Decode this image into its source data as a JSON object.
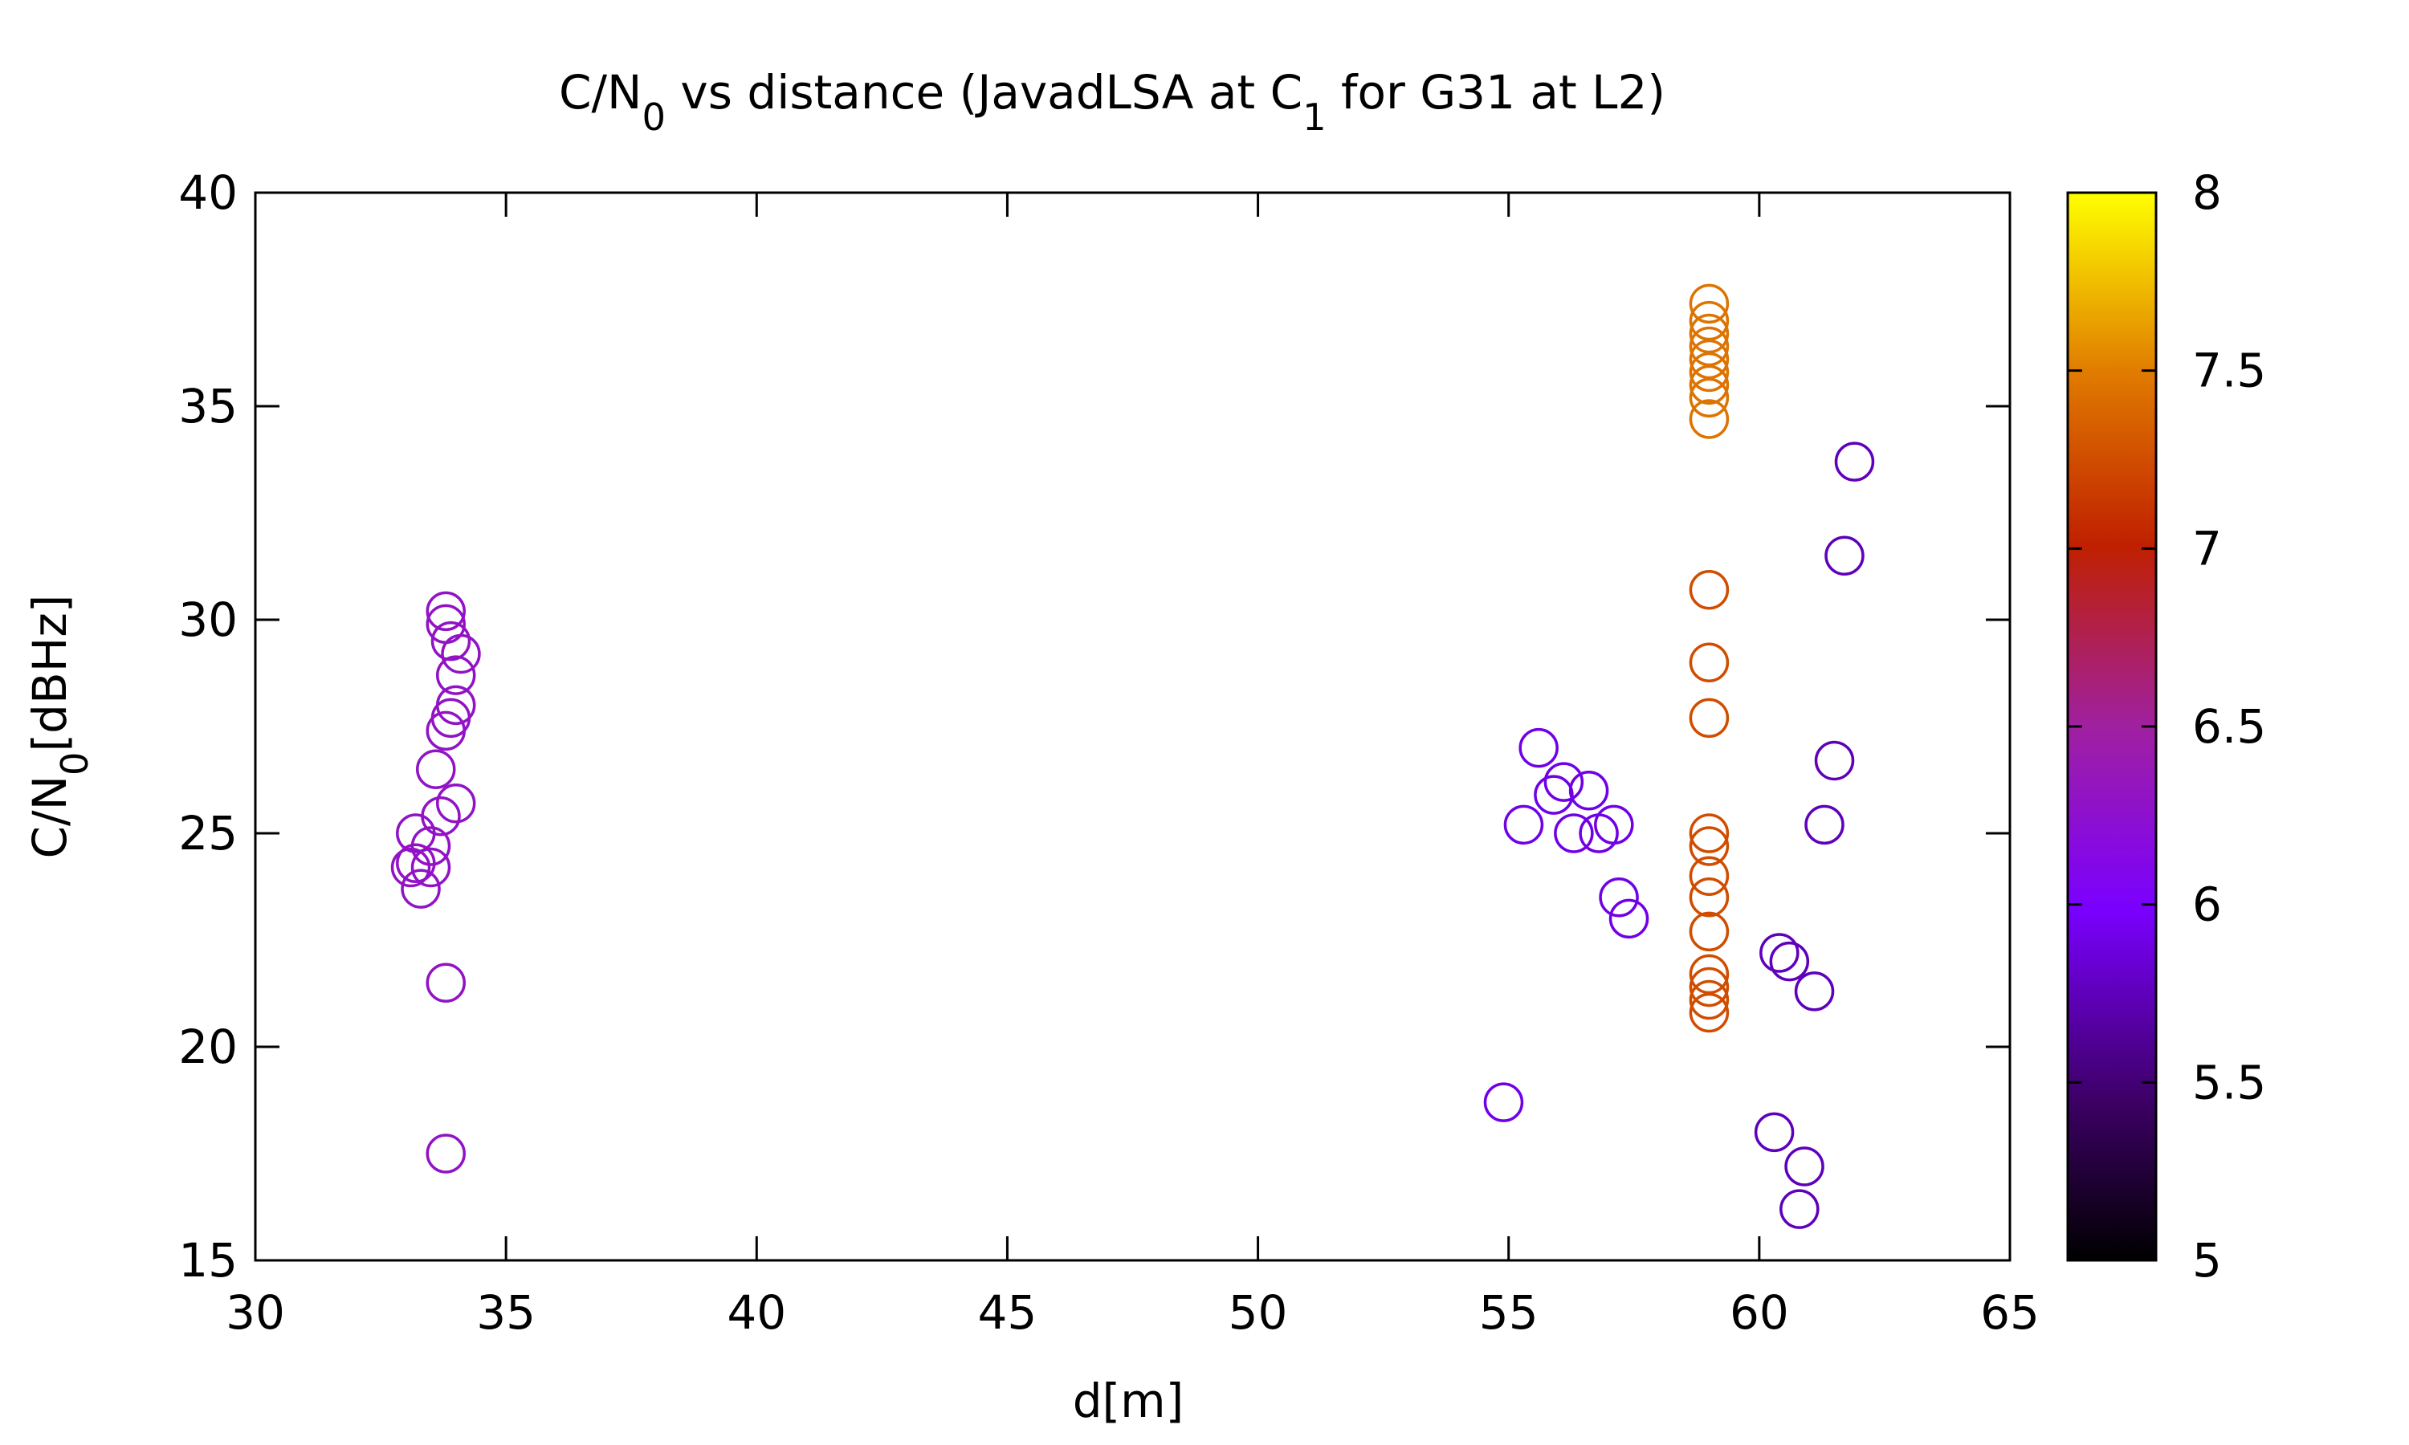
{
  "chart_data": {
    "type": "scatter",
    "title_parts": [
      {
        "text": "C/N",
        "sub": false
      },
      {
        "text": "0",
        "sub": true
      },
      {
        "text": " vs distance (JavadLSA at C",
        "sub": false
      },
      {
        "text": "1",
        "sub": true
      },
      {
        "text": " for G31 at L2)",
        "sub": false
      }
    ],
    "xlabel": "d[m]",
    "ylabel_parts": [
      {
        "text": "C/N",
        "sub": false
      },
      {
        "text": "0",
        "sub": true
      },
      {
        "text": "[dBHz]",
        "sub": false
      }
    ],
    "xlim": [
      30,
      65
    ],
    "ylim": [
      15,
      40
    ],
    "xticks": [
      30,
      35,
      40,
      45,
      50,
      55,
      60,
      65
    ],
    "yticks": [
      15,
      20,
      25,
      30,
      35,
      40
    ],
    "marker": "open-circle",
    "grid": false,
    "colorbar": {
      "range": [
        5,
        8
      ],
      "ticks": [
        "5",
        "5.5",
        "6",
        "6.5",
        "7",
        "7.5",
        "8"
      ],
      "palette": [
        "#000000",
        "#3d0066",
        "#7a00ff",
        "#a020a0",
        "#c02000",
        "#e07a00",
        "#ffff00"
      ],
      "stops": [
        0,
        0.15,
        0.33,
        0.5,
        0.67,
        0.83,
        1
      ]
    },
    "groups": [
      {
        "c": 6.3,
        "points": [
          [
            33.8,
            30.2
          ],
          [
            33.8,
            29.9
          ],
          [
            33.9,
            29.5
          ],
          [
            34.1,
            29.2
          ],
          [
            34.0,
            28.7
          ],
          [
            34.0,
            28.0
          ],
          [
            33.9,
            27.7
          ],
          [
            33.8,
            27.4
          ],
          [
            33.6,
            26.5
          ],
          [
            34.0,
            25.7
          ],
          [
            33.7,
            25.4
          ],
          [
            33.2,
            25.0
          ],
          [
            33.5,
            24.7
          ],
          [
            33.2,
            24.3
          ],
          [
            33.1,
            24.2
          ],
          [
            33.5,
            24.2
          ],
          [
            33.3,
            23.7
          ],
          [
            33.8,
            21.5
          ],
          [
            33.8,
            17.5
          ]
        ]
      },
      {
        "c": 5.9,
        "points": [
          [
            55.6,
            27.0
          ],
          [
            56.1,
            26.2
          ],
          [
            56.6,
            26.0
          ],
          [
            55.9,
            25.9
          ],
          [
            55.3,
            25.2
          ],
          [
            57.1,
            25.2
          ],
          [
            56.3,
            25.0
          ],
          [
            56.8,
            25.0
          ],
          [
            57.2,
            23.5
          ],
          [
            57.4,
            23.0
          ],
          [
            54.9,
            18.7
          ]
        ]
      },
      {
        "c": 5.75,
        "points": [
          [
            61.9,
            33.7
          ],
          [
            61.7,
            31.5
          ],
          [
            61.5,
            26.7
          ],
          [
            61.3,
            25.2
          ],
          [
            60.4,
            22.2
          ],
          [
            60.6,
            22.0
          ],
          [
            61.1,
            21.3
          ],
          [
            60.3,
            18.0
          ],
          [
            60.9,
            17.2
          ],
          [
            60.8,
            16.2
          ]
        ]
      },
      {
        "c": 7.45,
        "points": [
          [
            59.0,
            37.4
          ],
          [
            59.0,
            37.0
          ],
          [
            59.0,
            36.7
          ],
          [
            59.0,
            36.4
          ],
          [
            59.0,
            36.1
          ],
          [
            59.0,
            35.8
          ],
          [
            59.0,
            35.5
          ],
          [
            59.0,
            35.2
          ],
          [
            59.0,
            34.7
          ]
        ]
      },
      {
        "c": 7.25,
        "points": [
          [
            59.0,
            30.7
          ],
          [
            59.0,
            29.0
          ],
          [
            59.0,
            27.7
          ],
          [
            59.0,
            25.0
          ],
          [
            59.0,
            24.7
          ],
          [
            59.0,
            24.0
          ],
          [
            59.0,
            23.5
          ],
          [
            59.0,
            22.7
          ],
          [
            59.0,
            21.7
          ],
          [
            59.0,
            21.4
          ],
          [
            59.0,
            21.1
          ],
          [
            59.0,
            20.8
          ]
        ]
      }
    ]
  }
}
